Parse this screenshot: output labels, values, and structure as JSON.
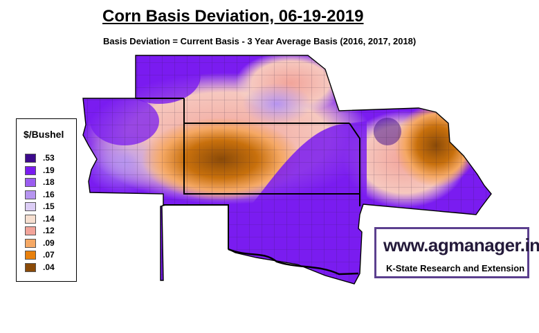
{
  "title": "Corn Basis Deviation, 06-19-2019",
  "subtitle": "Basis Deviation = Current Basis - 3 Year Average Basis (2016, 2017, 2018)",
  "legend": {
    "title": "$/Bushel",
    "items": [
      {
        "label": ".53",
        "color": "#3d0a8c"
      },
      {
        "label": ".19",
        "color": "#7a1cf0"
      },
      {
        "label": ".18",
        "color": "#9a5cf0"
      },
      {
        "label": ".16",
        "color": "#b694f0"
      },
      {
        "label": ".15",
        "color": "#dccdf5"
      },
      {
        "label": ".14",
        "color": "#f6dfd0"
      },
      {
        "label": ".12",
        "color": "#f2a49a"
      },
      {
        "label": ".09",
        "color": "#f5a864"
      },
      {
        "label": ".07",
        "color": "#e8800c"
      },
      {
        "label": ".04",
        "color": "#8a4a08"
      }
    ]
  },
  "brand": {
    "url": "www.agmanager.info",
    "org": "K-State Research and Extension"
  }
}
